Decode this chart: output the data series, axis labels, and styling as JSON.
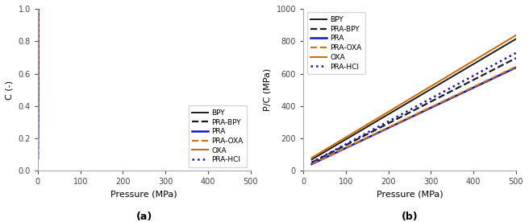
{
  "title_a": "(a)",
  "title_b": "(b)",
  "xlabel": "Pressure (MPa)",
  "ylabel_a": "C (-)",
  "ylabel_b": "P/C (MPa)",
  "xlim_a": [
    0,
    500
  ],
  "ylim_a": [
    0.0,
    1.0
  ],
  "xlim_b": [
    0,
    500
  ],
  "ylim_b": [
    0,
    1000
  ],
  "series_a": [
    {
      "label": "BPY",
      "color": "#1a1a1a",
      "linestyle": "solid",
      "lw": 1.4,
      "a": 0.645,
      "b": 0.04
    },
    {
      "label": "PRA-BPY",
      "color": "#1a1a1a",
      "linestyle": "dashed",
      "lw": 1.6,
      "a": 0.745,
      "b": 0.055
    },
    {
      "label": "PRA",
      "color": "#1111cc",
      "linestyle": "solid",
      "lw": 1.8,
      "a": 0.805,
      "b": 0.075
    },
    {
      "label": "PRA-OXA",
      "color": "#cc7711",
      "linestyle": "dashed",
      "lw": 1.6,
      "a": 0.8,
      "b": 0.07
    },
    {
      "label": "OXA",
      "color": "#cc6600",
      "linestyle": "solid",
      "lw": 1.4,
      "a": 0.635,
      "b": 0.032
    },
    {
      "label": "PRA-HCI",
      "color": "#1111cc",
      "linestyle": "dotted",
      "lw": 1.8,
      "a": 0.71,
      "b": 0.06
    }
  ],
  "series_b": [
    {
      "label": "BPY",
      "color": "#1a1a1a",
      "linestyle": "solid",
      "lw": 1.4,
      "a": 0.645,
      "b": 0.04
    },
    {
      "label": "PRA-BPY",
      "color": "#1a1a1a",
      "linestyle": "dashed",
      "lw": 1.6,
      "a": 0.745,
      "b": 0.055
    },
    {
      "label": "PRA",
      "color": "#1111cc",
      "linestyle": "solid",
      "lw": 1.8,
      "a": 0.805,
      "b": 0.075
    },
    {
      "label": "PRA-OXA",
      "color": "#cc7711",
      "linestyle": "dashed",
      "lw": 1.6,
      "a": 0.8,
      "b": 0.07
    },
    {
      "label": "OXA",
      "color": "#cc6600",
      "linestyle": "solid",
      "lw": 1.4,
      "a": 0.635,
      "b": 0.032
    },
    {
      "label": "PRA-HCI",
      "color": "#1111cc",
      "linestyle": "dotted",
      "lw": 1.8,
      "a": 0.71,
      "b": 0.06
    }
  ],
  "legend_fontsize": 6.5,
  "axis_fontsize": 8,
  "tick_fontsize": 7
}
